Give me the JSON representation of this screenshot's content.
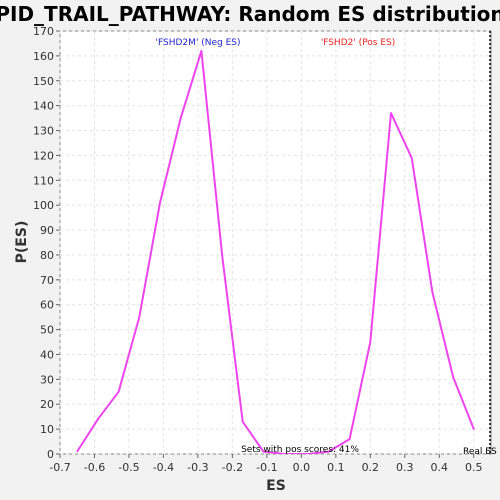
{
  "chart_data": {
    "type": "line",
    "title": "PID_TRAIL_PATHWAY: Random ES distribution",
    "xlabel": "ES",
    "ylabel": "P(ES)",
    "xlim": [
      -0.7,
      0.55
    ],
    "ylim": [
      0,
      170
    ],
    "xticks": [
      "-0.7",
      "-0.6",
      "-0.5",
      "-0.4",
      "-0.3",
      "-0.2",
      "-0.1",
      "0.0",
      "0.1",
      "0.2",
      "0.3",
      "0.4",
      "0.5"
    ],
    "yticks": [
      "0",
      "10",
      "20",
      "30",
      "40",
      "50",
      "60",
      "70",
      "80",
      "90",
      "100",
      "110",
      "120",
      "130",
      "140",
      "150",
      "160",
      "170"
    ],
    "grid": true,
    "series": [
      {
        "color": "#ee44ee",
        "x": [
          -0.65,
          -0.59,
          -0.53,
          -0.47,
          -0.41,
          -0.35,
          -0.29,
          -0.23,
          -0.17,
          -0.11,
          -0.05,
          0.02,
          0.08,
          0.14,
          0.2,
          0.26,
          0.32,
          0.38,
          0.44,
          0.5
        ],
        "y": [
          1,
          14,
          25,
          55,
          101,
          135,
          162,
          80,
          13,
          1,
          0,
          0,
          1,
          6,
          45,
          137,
          119,
          65,
          31,
          10
        ]
      }
    ],
    "annotations": {
      "neg_label": "'FSHD2M' (Neg ES)",
      "neg_color": "#2222cc",
      "pos_label": "'FSHD2' (Pos ES)",
      "pos_color": "#ee2222",
      "pos_fraction": "Sets with pos scores: 41%",
      "real_es": "Real ES"
    }
  }
}
